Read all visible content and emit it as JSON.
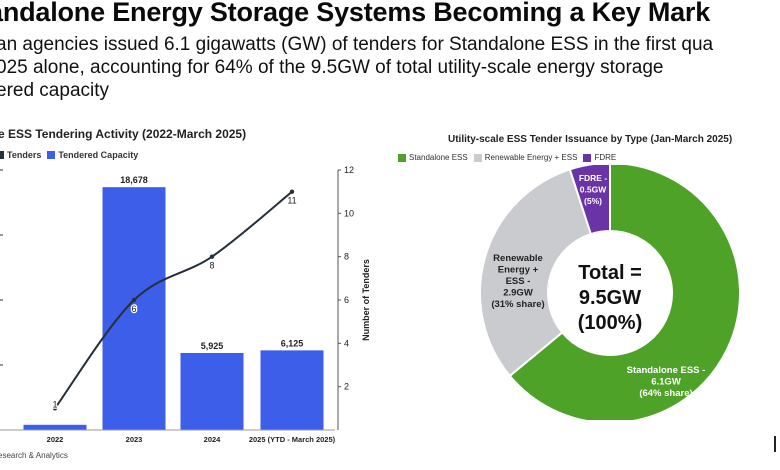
{
  "headline": "andalone Energy Storage Systems Becoming a Key Mark",
  "subtitle_lines": [
    "an agencies issued 6.1 gigawatts (GW) of tenders for Standalone ESS in the first qua",
    "025 alone, accounting for 64% of the 9.5GW of total utility-scale energy storage",
    "ered capacity"
  ],
  "source": "esearch & Analytics",
  "colors": {
    "bar": "#3d5ee8",
    "line": "#25303b",
    "standalone": "#4fa228",
    "renewable": "#c9cbcf",
    "fdre": "#6a33a6"
  },
  "chart_data": [
    {
      "type": "bar",
      "title": "e ESS Tendering Activity (2022-March 2025)",
      "legend": [
        "Tenders",
        "Tendered Capacity"
      ],
      "categories": [
        "2022",
        "2023",
        "2024",
        "2025 (YTD - March 2025)"
      ],
      "series": [
        {
          "name": "Tendered Capacity",
          "values": [
            400,
            18678,
            5925,
            6125
          ],
          "data_labels": [
            "",
            "18,678",
            "5,925",
            "6,125"
          ]
        },
        {
          "name": "Tenders",
          "type": "line",
          "values": [
            1,
            6,
            8,
            11
          ],
          "data_labels": [
            "1",
            "6",
            "8",
            "11"
          ]
        }
      ],
      "ylim": [
        0,
        20000
      ],
      "y2label": "Number of Tenders",
      "y2lim": [
        0,
        12
      ],
      "y2ticks": [
        "2",
        "4",
        "6",
        "8",
        "10",
        "12"
      ],
      "grid": false
    },
    {
      "type": "pie",
      "title": "Utility-scale ESS Tender Issuance by Type (Jan-March 2025)",
      "legend": [
        "Standalone ESS",
        "Renewable Energy + ESS",
        "FDRE"
      ],
      "center_label": [
        "Total =",
        "9.5GW",
        "(100%)"
      ],
      "slices": [
        {
          "name": "Standalone ESS",
          "value": 64,
          "label": [
            "Standalone ESS -",
            "6.1GW",
            "(64% share)"
          ]
        },
        {
          "name": "Renewable Energy + ESS",
          "value": 31,
          "label": [
            "Renewable",
            "Energy +",
            "ESS -",
            "2.9GW",
            "(31% share)"
          ]
        },
        {
          "name": "FDRE",
          "value": 5,
          "label": [
            "FDRE -",
            "0.5GW",
            "(5%)"
          ]
        }
      ]
    }
  ]
}
